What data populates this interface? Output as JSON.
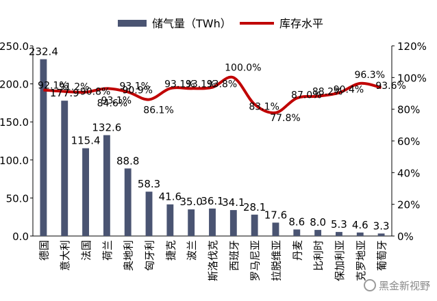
{
  "chart_data": {
    "type": "bar",
    "categories": [
      "德国",
      "意大利",
      "法国",
      "荷兰",
      "奥地利",
      "匈牙利",
      "捷克",
      "波兰",
      "斯洛伐克",
      "西班牙",
      "罗马尼亚",
      "拉脱维亚",
      "丹麦",
      "比利时",
      "保加利亚",
      "克罗地亚",
      "葡萄牙"
    ],
    "series": [
      {
        "name": "储气量（TWh）",
        "type": "bar",
        "axis": "left",
        "color": "#4a5472",
        "values": [
          232.4,
          177.9,
          115.4,
          132.6,
          88.8,
          58.3,
          41.6,
          35.0,
          36.1,
          34.1,
          28.1,
          17.6,
          8.6,
          8.0,
          5.3,
          4.6,
          3.3
        ],
        "labels": [
          "232.4",
          "177.9",
          "115.4",
          "132.6",
          "88.8",
          "58.3",
          "41.6",
          "35.0",
          "36.1",
          "34.1",
          "28.1",
          "17.6",
          "8.6",
          "8.0",
          "5.3",
          "4.6",
          "3.3"
        ]
      },
      {
        "name": "库存水平",
        "type": "line",
        "axis": "right",
        "color": "#c00000",
        "values": [
          92.1,
          91.2,
          90.8,
          93.1,
          90.9,
          86.1,
          93.1,
          93.1,
          93.8,
          100.0,
          83.1,
          77.8,
          87.0,
          88.2,
          90.4,
          96.3,
          93.6
        ],
        "labels": [
          "92.1%",
          "91.2%",
          "90.8%",
          "93.1%",
          "90.9%",
          "86.1%",
          "93.1%",
          "93.1%",
          "93.8%",
          "100.0%",
          "83.1%",
          "77.8%",
          "87.0%",
          "88.2%",
          "90.4%",
          "96.3%",
          "93.6%"
        ],
        "extra_labels": [
          "84.6%",
          "93.1%"
        ]
      }
    ],
    "y_left": {
      "ticks": [
        "0.0",
        "50.0",
        "100.0",
        "150.0",
        "200.0",
        "250.0"
      ],
      "ylim": [
        0,
        250
      ]
    },
    "y_right": {
      "ticks": [
        "0%",
        "20%",
        "40%",
        "60%",
        "80%",
        "100%",
        "120%"
      ],
      "ylim": [
        0,
        120
      ]
    },
    "legend_position": "top",
    "grid": false
  },
  "watermark": {
    "text": "黑金新视野",
    "icon": "circle-logo-icon"
  }
}
